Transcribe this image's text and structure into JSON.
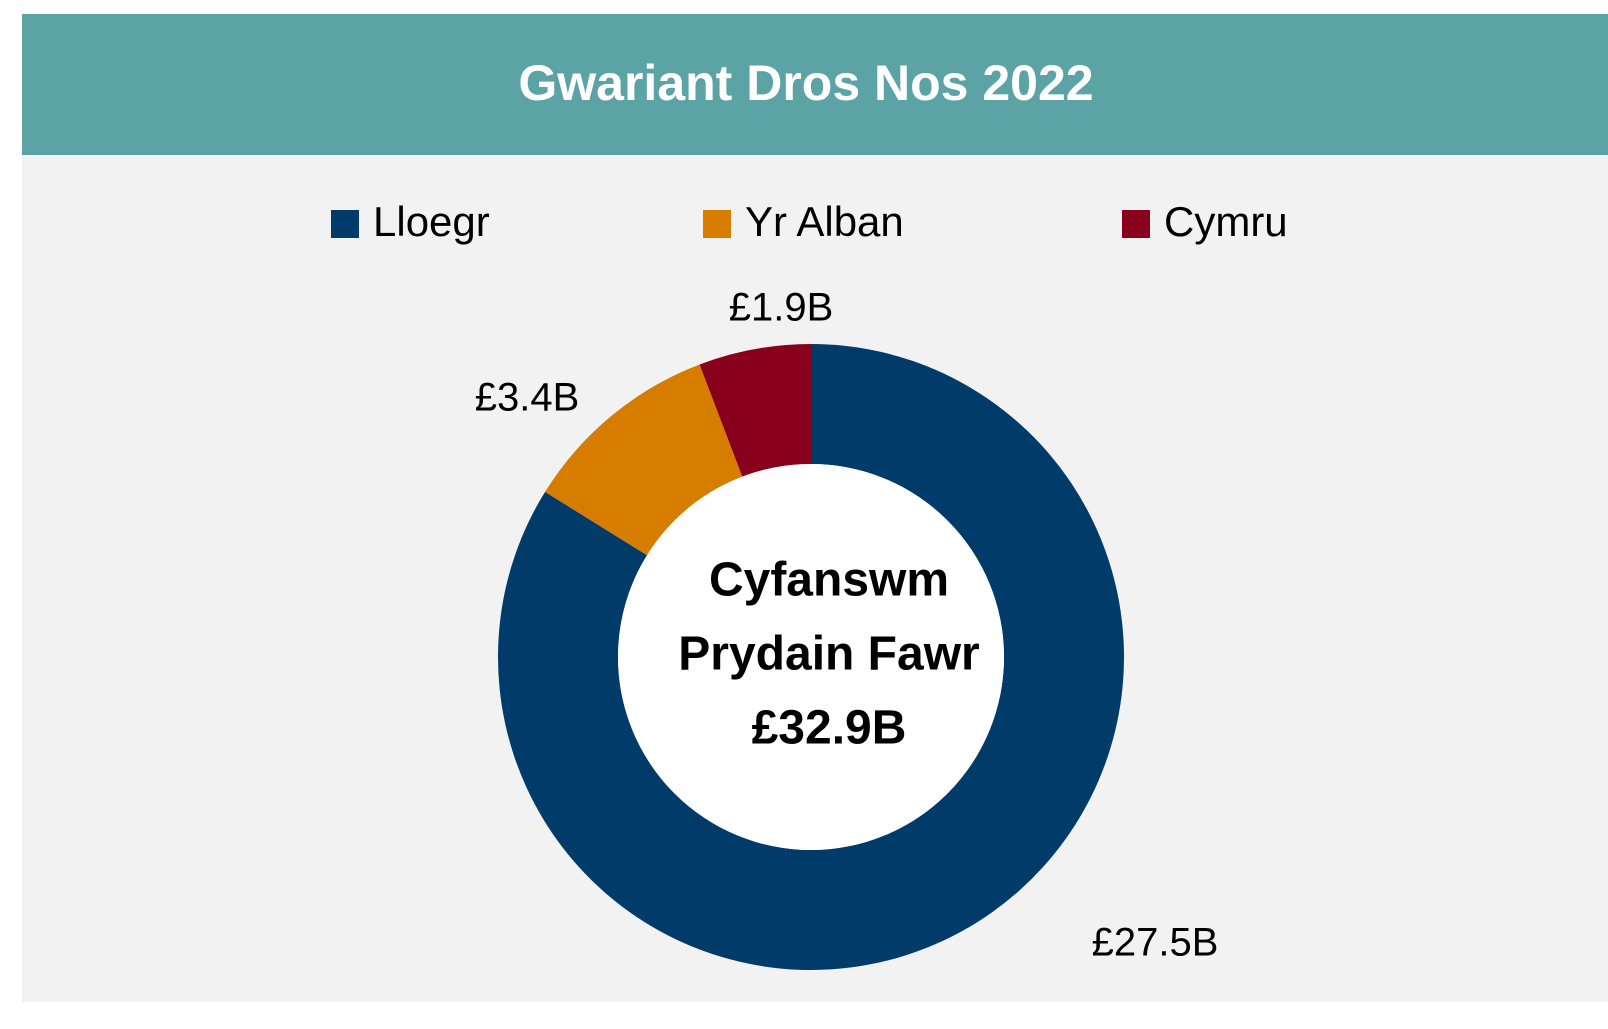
{
  "chart_data": {
    "type": "donut",
    "title": "Gwariant Dros Nos 2022",
    "categories": [
      "Lloegr",
      "Yr Alban",
      "Cymru"
    ],
    "values": [
      27.5,
      3.4,
      1.9
    ],
    "value_labels": [
      "£27.5B",
      "£3.4B",
      "£1.9B"
    ],
    "colors": [
      "#003b6a",
      "#d67d00",
      "#88001b"
    ],
    "center_text": [
      "Cyfanswm",
      "Prydain Fawr",
      "£32.9B"
    ],
    "legend": "top"
  }
}
